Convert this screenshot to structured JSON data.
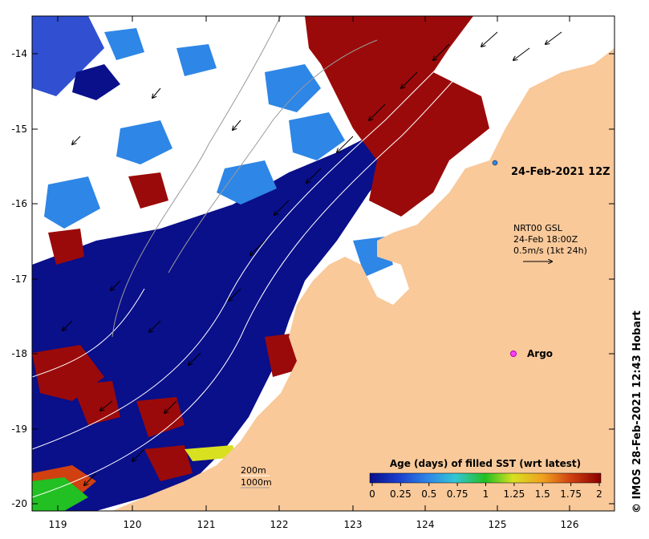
{
  "map": {
    "float_time": "24-Feb-2021 12Z",
    "current_source": "NRT00 GSL",
    "current_time": "24-Feb 18:00Z",
    "arrow_scale": "0.5m/s (1kt 24h)",
    "argo_label": "Argo",
    "isobath_200": "200m",
    "isobath_1000": "1000m",
    "credit": "© IMOS 28-Feb-2021 12:43 Hobart",
    "x_ticks": [
      "119",
      "120",
      "121",
      "122",
      "123",
      "124",
      "125",
      "126"
    ],
    "y_ticks": [
      "-14",
      "-15",
      "-16",
      "-17",
      "-18",
      "-19",
      "-20"
    ],
    "colorbar": {
      "title": "Age (days) of filled SST (wrt latest)",
      "ticks": [
        "0",
        "0.25",
        "0.5",
        "0.75",
        "1",
        "1.25",
        "1.5",
        "1.75",
        "2"
      ],
      "colors": [
        "#0a0f8a",
        "#1a3ccc",
        "#2e86e6",
        "#33c6d6",
        "#22c022",
        "#d8e020",
        "#f0a020",
        "#d04010",
        "#8b0000"
      ]
    },
    "colors": {
      "land": "#f9c99a",
      "cloud": "#ffffff",
      "recent": "#0a0f8a",
      "old": "#9b0a0a"
    }
  }
}
